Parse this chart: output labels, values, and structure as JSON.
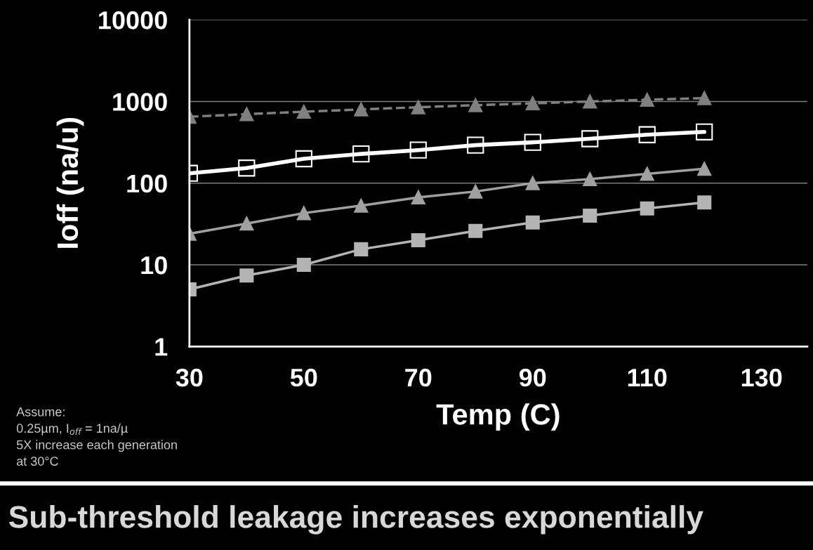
{
  "chart_data": {
    "type": "line",
    "title": "Sub-threshold leakage increases exponentially",
    "xlabel": "Temp (C)",
    "ylabel": "Ioff (na/u)",
    "x": [
      30,
      40,
      50,
      60,
      70,
      80,
      90,
      100,
      110,
      120
    ],
    "series": [
      {
        "color": "#808080",
        "marker": "triangle",
        "line_style": "dashed",
        "values": [
          650,
          700,
          750,
          800,
          850,
          900,
          950,
          1000,
          1050,
          1100
        ]
      },
      {
        "color": "#ffffff",
        "marker": "square",
        "line_style": "solid",
        "values": [
          132,
          153,
          199,
          228,
          254,
          292,
          316,
          350,
          392,
          424
        ]
      },
      {
        "color": "#a0a0a0",
        "marker": "triangle",
        "line_style": "solid",
        "values": [
          24,
          32,
          43,
          53,
          67,
          79,
          100,
          112,
          130,
          150
        ]
      },
      {
        "color": "#b4b4b4",
        "marker": "square",
        "line_style": "solid",
        "values": [
          5,
          7.4,
          10,
          15.5,
          20,
          26,
          33,
          40,
          49,
          58
        ]
      }
    ],
    "log": true,
    "xlim": [
      30,
      138
    ],
    "xticks": [
      30,
      50,
      70,
      90,
      110,
      130
    ],
    "ylim": [
      1,
      10000
    ],
    "yticks": [
      1,
      10,
      100,
      1000,
      10000
    ],
    "grid": "y",
    "annotations": [
      "Assume:\n0.25µm, I$_{off}$ = 1na/µ\n5X increase each generation\nat 30°C"
    ]
  }
}
